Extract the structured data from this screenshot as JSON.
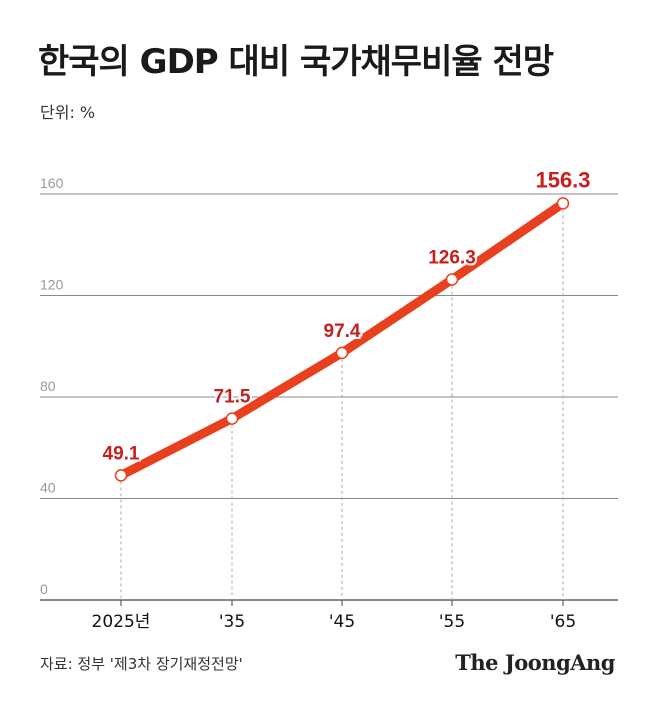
{
  "header": {
    "title": "한국의 GDP 대비 국가채무비율 전망",
    "unit": "단위: %"
  },
  "footer": {
    "source": "자료: 정부 '제3차 장기재정전망'",
    "brand": "The JoongAng"
  },
  "colors": {
    "line": "#e8401f",
    "label": "#c81e1e",
    "grid": "#888888",
    "tick": "#999999"
  },
  "chart_data": {
    "type": "line",
    "categories": [
      "2025년",
      "'35",
      "'45",
      "'55",
      "'65"
    ],
    "series": [
      {
        "values": [
          49.1,
          71.5,
          97.4,
          126.3,
          156.3
        ]
      }
    ],
    "data_labels": [
      "49.1",
      "71.5",
      "97.4",
      "126.3",
      "156.3"
    ],
    "yticks": [
      "0",
      "40",
      "80",
      "120",
      "160"
    ],
    "ylim": [
      0,
      160
    ],
    "grid": true,
    "legend": "none"
  }
}
